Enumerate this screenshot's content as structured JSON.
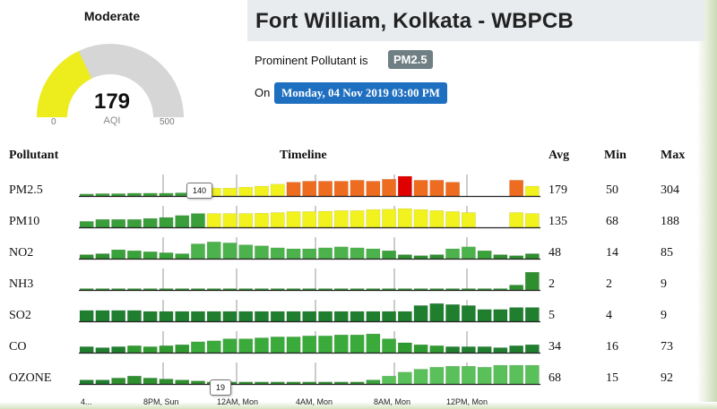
{
  "aqi": {
    "category": "Moderate",
    "value": "179",
    "label": "AQI",
    "min": "0",
    "max": "500",
    "fraction": 0.358,
    "color": "#eded1e"
  },
  "station": {
    "title": "Fort William, Kolkata - WBPCB",
    "prominent_label": "Prominent Pollutant is",
    "prominent_value": "PM2.5",
    "on_label": "On",
    "datetime": "Monday, 04 Nov 2019 03:00 PM"
  },
  "table": {
    "headers": {
      "pollutant": "Pollutant",
      "timeline": "Timeline",
      "avg": "Avg",
      "min": "Min",
      "max": "Max"
    },
    "rows": [
      {
        "name": "PM2.5",
        "avg": "179",
        "min": "50",
        "max": "304",
        "bars": [
          {
            "v": 0.1,
            "c": "#3a9e3a"
          },
          {
            "v": 0.12,
            "c": "#3a9e3a"
          },
          {
            "v": 0.12,
            "c": "#3a9e3a"
          },
          {
            "v": 0.14,
            "c": "#3a9e3a"
          },
          {
            "v": 0.14,
            "c": "#3a9e3a"
          },
          {
            "v": 0.14,
            "c": "#3a9e3a"
          },
          {
            "v": 0.16,
            "c": "#3a9e3a"
          },
          {
            "v": 0.22,
            "c": "#3a9e3a"
          },
          {
            "v": 0.4,
            "c": "#f2f21e"
          },
          {
            "v": 0.4,
            "c": "#f2f21e"
          },
          {
            "v": 0.45,
            "c": "#f2f21e"
          },
          {
            "v": 0.5,
            "c": "#f2f21e"
          },
          {
            "v": 0.6,
            "c": "#f2f21e"
          },
          {
            "v": 0.7,
            "c": "#ee6c1f"
          },
          {
            "v": 0.75,
            "c": "#ee6c1f"
          },
          {
            "v": 0.75,
            "c": "#ee6c1f"
          },
          {
            "v": 0.75,
            "c": "#ee6c1f"
          },
          {
            "v": 0.8,
            "c": "#ee6c1f"
          },
          {
            "v": 0.75,
            "c": "#ee6c1f"
          },
          {
            "v": 0.85,
            "c": "#ee6c1f"
          },
          {
            "v": 1.0,
            "c": "#e00000"
          },
          {
            "v": 0.8,
            "c": "#ee6c1f"
          },
          {
            "v": 0.8,
            "c": "#ee6c1f"
          },
          {
            "v": 0.7,
            "c": "#ee6c1f"
          },
          null,
          null,
          null,
          {
            "v": 0.8,
            "c": "#ee6c1f"
          },
          {
            "v": 0.5,
            "c": "#f2f21e"
          }
        ],
        "tooltip": "140"
      },
      {
        "name": "PM10",
        "avg": "135",
        "min": "68",
        "max": "188",
        "bars": [
          {
            "v": 0.3,
            "c": "#3a9e3a"
          },
          {
            "v": 0.4,
            "c": "#3a9e3a"
          },
          {
            "v": 0.4,
            "c": "#3a9e3a"
          },
          {
            "v": 0.4,
            "c": "#3a9e3a"
          },
          {
            "v": 0.45,
            "c": "#3a9e3a"
          },
          {
            "v": 0.5,
            "c": "#3a9e3a"
          },
          {
            "v": 0.6,
            "c": "#3a9e3a"
          },
          {
            "v": 0.7,
            "c": "#3a9e3a"
          },
          {
            "v": 0.7,
            "c": "#f2f21e"
          },
          {
            "v": 0.7,
            "c": "#f2f21e"
          },
          {
            "v": 0.7,
            "c": "#f2f21e"
          },
          {
            "v": 0.72,
            "c": "#f2f21e"
          },
          {
            "v": 0.75,
            "c": "#f2f21e"
          },
          {
            "v": 0.8,
            "c": "#f2f21e"
          },
          {
            "v": 0.8,
            "c": "#f2f21e"
          },
          {
            "v": 0.82,
            "c": "#f2f21e"
          },
          {
            "v": 0.85,
            "c": "#f2f21e"
          },
          {
            "v": 0.85,
            "c": "#f2f21e"
          },
          {
            "v": 0.9,
            "c": "#f2f21e"
          },
          {
            "v": 0.92,
            "c": "#f2f21e"
          },
          {
            "v": 0.95,
            "c": "#f2f21e"
          },
          {
            "v": 0.9,
            "c": "#f2f21e"
          },
          {
            "v": 0.85,
            "c": "#f2f21e"
          },
          {
            "v": 0.8,
            "c": "#f2f21e"
          },
          {
            "v": 0.75,
            "c": "#f2f21e"
          },
          null,
          null,
          {
            "v": 0.75,
            "c": "#f2f21e"
          },
          {
            "v": 0.7,
            "c": "#f2f21e"
          }
        ]
      },
      {
        "name": "NO2",
        "avg": "48",
        "min": "14",
        "max": "85",
        "bars": [
          {
            "v": 0.2,
            "c": "#2f8f2f"
          },
          {
            "v": 0.25,
            "c": "#2f8f2f"
          },
          {
            "v": 0.45,
            "c": "#3aa23a"
          },
          {
            "v": 0.4,
            "c": "#3aa23a"
          },
          {
            "v": 0.35,
            "c": "#3aa23a"
          },
          {
            "v": 0.3,
            "c": "#3aa23a"
          },
          {
            "v": 0.25,
            "c": "#3aa23a"
          },
          {
            "v": 0.75,
            "c": "#4cb34c"
          },
          {
            "v": 0.85,
            "c": "#4cb34c"
          },
          {
            "v": 0.8,
            "c": "#4cb34c"
          },
          {
            "v": 0.7,
            "c": "#4cb34c"
          },
          {
            "v": 0.65,
            "c": "#4cb34c"
          },
          {
            "v": 0.55,
            "c": "#4cb34c"
          },
          {
            "v": 0.5,
            "c": "#4cb34c"
          },
          {
            "v": 0.5,
            "c": "#4cb34c"
          },
          {
            "v": 0.55,
            "c": "#4cb34c"
          },
          {
            "v": 0.6,
            "c": "#4cb34c"
          },
          {
            "v": 0.55,
            "c": "#4cb34c"
          },
          {
            "v": 0.5,
            "c": "#4cb34c"
          },
          {
            "v": 0.4,
            "c": "#3aa23a"
          },
          {
            "v": 0.2,
            "c": "#2f8f2f"
          },
          {
            "v": 0.15,
            "c": "#2f8f2f"
          },
          {
            "v": 0.2,
            "c": "#2f8f2f"
          },
          {
            "v": 0.5,
            "c": "#4cb34c"
          },
          {
            "v": 0.6,
            "c": "#4cb34c"
          },
          {
            "v": 0.4,
            "c": "#3aa23a"
          },
          {
            "v": 0.2,
            "c": "#2f8f2f"
          },
          {
            "v": 0.15,
            "c": "#2f8f2f"
          },
          {
            "v": 0.25,
            "c": "#2f8f2f"
          }
        ]
      },
      {
        "name": "NH3",
        "avg": "2",
        "min": "2",
        "max": "9",
        "bars": [
          {
            "v": 0.04,
            "c": "#2f8f2f"
          },
          {
            "v": 0.04,
            "c": "#2f8f2f"
          },
          {
            "v": 0.04,
            "c": "#2f8f2f"
          },
          {
            "v": 0.04,
            "c": "#2f8f2f"
          },
          {
            "v": 0.04,
            "c": "#2f8f2f"
          },
          {
            "v": 0.04,
            "c": "#2f8f2f"
          },
          {
            "v": 0.04,
            "c": "#2f8f2f"
          },
          {
            "v": 0.04,
            "c": "#2f8f2f"
          },
          {
            "v": 0.04,
            "c": "#2f8f2f"
          },
          {
            "v": 0.04,
            "c": "#2f8f2f"
          },
          {
            "v": 0.04,
            "c": "#2f8f2f"
          },
          {
            "v": 0.04,
            "c": "#2f8f2f"
          },
          {
            "v": 0.04,
            "c": "#2f8f2f"
          },
          {
            "v": 0.04,
            "c": "#2f8f2f"
          },
          {
            "v": 0.04,
            "c": "#2f8f2f"
          },
          {
            "v": 0.04,
            "c": "#2f8f2f"
          },
          {
            "v": 0.04,
            "c": "#2f8f2f"
          },
          {
            "v": 0.04,
            "c": "#2f8f2f"
          },
          {
            "v": 0.04,
            "c": "#2f8f2f"
          },
          {
            "v": 0.04,
            "c": "#2f8f2f"
          },
          {
            "v": 0.04,
            "c": "#2f8f2f"
          },
          {
            "v": 0.04,
            "c": "#2f8f2f"
          },
          {
            "v": 0.04,
            "c": "#2f8f2f"
          },
          {
            "v": 0.04,
            "c": "#2f8f2f"
          },
          {
            "v": 0.04,
            "c": "#2f8f2f"
          },
          {
            "v": 0.04,
            "c": "#2f8f2f"
          },
          {
            "v": 0.04,
            "c": "#2f8f2f"
          },
          {
            "v": 0.25,
            "c": "#2f8f2f"
          },
          {
            "v": 0.9,
            "c": "#2f8f2f"
          }
        ]
      },
      {
        "name": "SO2",
        "avg": "5",
        "min": "4",
        "max": "9",
        "bars": [
          {
            "v": 0.55,
            "c": "#1f7f2f"
          },
          {
            "v": 0.55,
            "c": "#1f7f2f"
          },
          {
            "v": 0.55,
            "c": "#1f7f2f"
          },
          {
            "v": 0.55,
            "c": "#1f7f2f"
          },
          {
            "v": 0.5,
            "c": "#1f7f2f"
          },
          {
            "v": 0.5,
            "c": "#1f7f2f"
          },
          {
            "v": 0.5,
            "c": "#1f7f2f"
          },
          {
            "v": 0.5,
            "c": "#1f7f2f"
          },
          {
            "v": 0.5,
            "c": "#1f7f2f"
          },
          {
            "v": 0.5,
            "c": "#1f7f2f"
          },
          {
            "v": 0.5,
            "c": "#1f7f2f"
          },
          {
            "v": 0.5,
            "c": "#1f7f2f"
          },
          {
            "v": 0.5,
            "c": "#1f7f2f"
          },
          {
            "v": 0.5,
            "c": "#1f7f2f"
          },
          {
            "v": 0.5,
            "c": "#1f7f2f"
          },
          {
            "v": 0.5,
            "c": "#1f7f2f"
          },
          {
            "v": 0.5,
            "c": "#1f7f2f"
          },
          {
            "v": 0.5,
            "c": "#1f7f2f"
          },
          {
            "v": 0.5,
            "c": "#1f7f2f"
          },
          {
            "v": 0.5,
            "c": "#1f7f2f"
          },
          {
            "v": 0.5,
            "c": "#1f7f2f"
          },
          {
            "v": 0.8,
            "c": "#1f7f2f"
          },
          {
            "v": 0.9,
            "c": "#1f7f2f"
          },
          {
            "v": 0.85,
            "c": "#1f7f2f"
          },
          {
            "v": 0.8,
            "c": "#1f7f2f"
          },
          {
            "v": 0.6,
            "c": "#1f7f2f"
          },
          {
            "v": 0.6,
            "c": "#1f7f2f"
          },
          {
            "v": 0.7,
            "c": "#1f7f2f"
          },
          {
            "v": 0.7,
            "c": "#1f7f2f"
          }
        ]
      },
      {
        "name": "CO",
        "avg": "34",
        "min": "16",
        "max": "73",
        "bars": [
          {
            "v": 0.3,
            "c": "#1f7f2f"
          },
          {
            "v": 0.25,
            "c": "#1f7f2f"
          },
          {
            "v": 0.3,
            "c": "#1f7f2f"
          },
          {
            "v": 0.35,
            "c": "#2f9a2f"
          },
          {
            "v": 0.3,
            "c": "#2f9a2f"
          },
          {
            "v": 0.35,
            "c": "#2f9a2f"
          },
          {
            "v": 0.4,
            "c": "#2f9a2f"
          },
          {
            "v": 0.55,
            "c": "#3aaa3a"
          },
          {
            "v": 0.6,
            "c": "#3aaa3a"
          },
          {
            "v": 0.7,
            "c": "#3aaa3a"
          },
          {
            "v": 0.7,
            "c": "#3aaa3a"
          },
          {
            "v": 0.75,
            "c": "#3aaa3a"
          },
          {
            "v": 0.8,
            "c": "#3aaa3a"
          },
          {
            "v": 0.8,
            "c": "#3aaa3a"
          },
          {
            "v": 0.85,
            "c": "#3aaa3a"
          },
          {
            "v": 0.85,
            "c": "#3aaa3a"
          },
          {
            "v": 0.9,
            "c": "#3aaa3a"
          },
          {
            "v": 0.9,
            "c": "#3aaa3a"
          },
          {
            "v": 0.95,
            "c": "#3aaa3a"
          },
          {
            "v": 0.7,
            "c": "#3aaa3a"
          },
          {
            "v": 0.5,
            "c": "#2f9a2f"
          },
          {
            "v": 0.4,
            "c": "#2f9a2f"
          },
          {
            "v": 0.35,
            "c": "#2f9a2f"
          },
          {
            "v": 0.3,
            "c": "#1f7f2f"
          },
          {
            "v": 0.3,
            "c": "#1f7f2f"
          },
          {
            "v": 0.3,
            "c": "#1f7f2f"
          },
          {
            "v": 0.25,
            "c": "#1f7f2f"
          },
          {
            "v": 0.35,
            "c": "#1f7f2f"
          },
          {
            "v": 0.4,
            "c": "#1f7f2f"
          }
        ]
      },
      {
        "name": "OZONE",
        "avg": "68",
        "min": "15",
        "max": "92",
        "bars": [
          {
            "v": 0.2,
            "c": "#1f7f2f"
          },
          {
            "v": 0.2,
            "c": "#1f7f2f"
          },
          {
            "v": 0.3,
            "c": "#2f8f2f"
          },
          {
            "v": 0.4,
            "c": "#2f8f2f"
          },
          {
            "v": 0.3,
            "c": "#2f8f2f"
          },
          {
            "v": 0.25,
            "c": "#2f8f2f"
          },
          {
            "v": 0.2,
            "c": "#2f8f2f"
          },
          {
            "v": 0.15,
            "c": "#2f8f2f"
          },
          {
            "v": 0.1,
            "c": "#2f8f2f"
          },
          {
            "v": 0.1,
            "c": "#2f8f2f"
          },
          {
            "v": 0.1,
            "c": "#2f8f2f"
          },
          {
            "v": 0.1,
            "c": "#2f8f2f"
          },
          {
            "v": 0.1,
            "c": "#2f8f2f"
          },
          {
            "v": 0.1,
            "c": "#2f8f2f"
          },
          {
            "v": 0.1,
            "c": "#2f8f2f"
          },
          {
            "v": 0.1,
            "c": "#2f8f2f"
          },
          {
            "v": 0.1,
            "c": "#2f8f2f"
          },
          {
            "v": 0.1,
            "c": "#2f8f2f"
          },
          {
            "v": 0.2,
            "c": "#3aa23a"
          },
          {
            "v": 0.4,
            "c": "#5ac05a"
          },
          {
            "v": 0.6,
            "c": "#5ac05a"
          },
          {
            "v": 0.75,
            "c": "#5ac05a"
          },
          {
            "v": 0.85,
            "c": "#5ac05a"
          },
          {
            "v": 0.9,
            "c": "#5ac05a"
          },
          {
            "v": 0.9,
            "c": "#5ac05a"
          },
          {
            "v": 0.85,
            "c": "#5ac05a"
          },
          {
            "v": 0.95,
            "c": "#5ac05a"
          },
          {
            "v": 0.95,
            "c": "#5ac05a"
          },
          {
            "v": 0.95,
            "c": "#5ac05a"
          }
        ],
        "tooltip": "19"
      }
    ],
    "time_labels": [
      "4...",
      "8PM, Sun",
      "12AM, Mon",
      "4AM, Mon",
      "8AM, Mon",
      "12PM, Mon"
    ]
  }
}
